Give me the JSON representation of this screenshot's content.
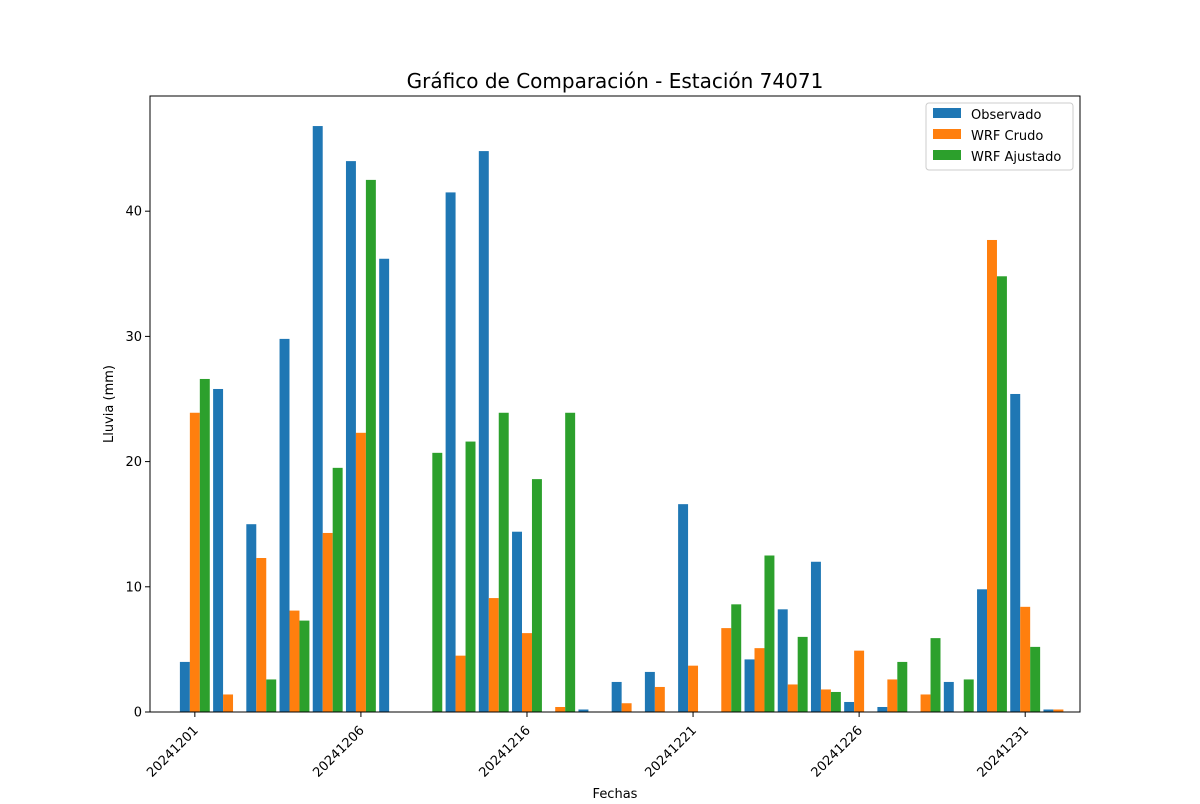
{
  "chart_data": {
    "type": "bar",
    "title": "Gráfico de Comparación - Estación 74071",
    "xlabel": "Fechas",
    "ylabel": "Lluvia (mm)",
    "ylim": [
      0,
      49.2
    ],
    "yticks": [
      0,
      10,
      20,
      30,
      40
    ],
    "xtick_labels": [
      {
        "label": "20241201",
        "day": 1
      },
      {
        "label": "20241206",
        "day": 6
      },
      {
        "label": "20241216",
        "day": 11
      },
      {
        "label": "20241221",
        "day": 16
      },
      {
        "label": "20241226",
        "day": 21
      },
      {
        "label": "20241231",
        "day": 26
      }
    ],
    "legend_position": "top-right",
    "grid": false,
    "days": [
      1,
      2,
      3,
      4,
      5,
      6,
      7,
      8,
      9,
      10,
      11,
      12,
      13,
      14,
      15,
      16,
      17,
      18,
      19,
      20,
      21,
      22,
      23,
      24,
      25,
      26,
      27
    ],
    "series": [
      {
        "name": "Observado",
        "color": "#1f77b4",
        "values": [
          4.0,
          25.8,
          15.0,
          29.8,
          46.8,
          44.0,
          36.2,
          0.0,
          41.5,
          44.8,
          14.4,
          0.0,
          0.2,
          2.4,
          3.2,
          16.6,
          0.0,
          4.2,
          8.2,
          12.0,
          0.8,
          0.4,
          0.0,
          2.4,
          9.8,
          25.4,
          0.2
        ]
      },
      {
        "name": "WRF Crudo",
        "color": "#ff7f0e",
        "values": [
          23.9,
          1.4,
          12.3,
          8.1,
          14.3,
          22.3,
          0.0,
          0.0,
          4.5,
          9.1,
          6.3,
          0.4,
          0.0,
          0.7,
          2.0,
          3.7,
          6.7,
          5.1,
          2.2,
          1.8,
          4.9,
          2.6,
          1.4,
          0.0,
          37.7,
          8.4,
          0.2
        ]
      },
      {
        "name": "WRF Ajustado",
        "color": "#2ca02c",
        "values": [
          26.6,
          0.0,
          2.6,
          7.3,
          19.5,
          42.5,
          0.0,
          20.7,
          21.6,
          23.9,
          18.6,
          23.9,
          0.0,
          0.0,
          0.0,
          0.0,
          8.6,
          12.5,
          6.0,
          1.6,
          0.0,
          4.0,
          5.9,
          2.6,
          34.8,
          5.2,
          0.0
        ]
      }
    ]
  }
}
